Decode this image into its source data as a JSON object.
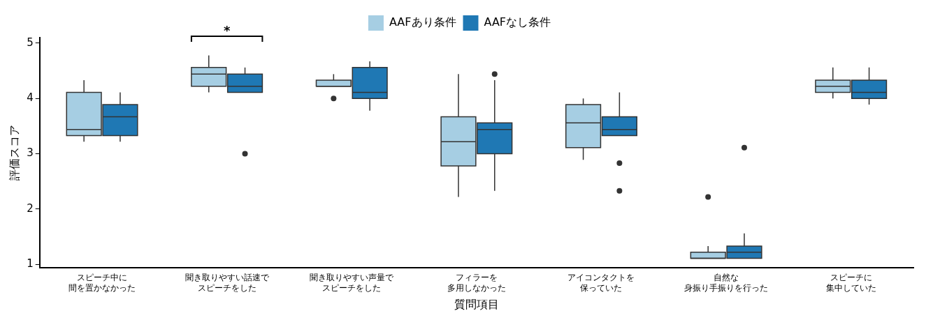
{
  "chart_data": {
    "type": "box",
    "xlabel": "質問項目",
    "ylabel": "評価スコア",
    "categories": [
      "スピーチ中に間を置かなかった",
      "聞き取りやすい話速でスピーチをした",
      "聞き取りやすい声量でスピーチをした",
      "フィラーを多用しなかった",
      "アイコンタクトを保っていた",
      "自然な身振り手振りを行った",
      "スピーチに集中していた"
    ],
    "ylim": [
      0.94,
      5.1
    ],
    "yticks": [
      1,
      2,
      3,
      4,
      5
    ],
    "legend": "top",
    "annotations": [
      "*"
    ],
    "series": [
      {
        "name": "AAFあり条件",
        "color": "#a6cee3",
        "boxes": [
          {
            "low": 3.22,
            "q1": 3.33,
            "median": 3.44,
            "q3": 4.11,
            "high": 4.33
          },
          {
            "low": 4.11,
            "q1": 4.22,
            "median": 4.44,
            "q3": 4.56,
            "high": 4.78
          },
          {
            "low": 4.22,
            "q1": 4.22,
            "median": 4.22,
            "q3": 4.33,
            "high": 4.44,
            "outliers": [
              4.0
            ]
          },
          {
            "low": 2.22,
            "q1": 2.78,
            "median": 3.22,
            "q3": 3.67,
            "high": 4.44
          },
          {
            "low": 2.89,
            "q1": 3.11,
            "median": 3.56,
            "q3": 3.89,
            "high": 4.0
          },
          {
            "low": 1.11,
            "q1": 1.11,
            "median": 1.11,
            "q3": 1.22,
            "high": 1.33,
            "outliers": [
              2.22
            ]
          },
          {
            "low": 4.0,
            "q1": 4.11,
            "median": 4.22,
            "q3": 4.33,
            "high": 4.56
          }
        ]
      },
      {
        "name": "AAFなし条件",
        "color": "#1f78b4",
        "boxes": [
          {
            "low": 3.22,
            "q1": 3.33,
            "median": 3.67,
            "q3": 3.89,
            "high": 4.11
          },
          {
            "low": 4.11,
            "q1": 4.11,
            "median": 4.22,
            "q3": 4.44,
            "high": 4.56,
            "outliers": [
              3.0
            ]
          },
          {
            "low": 3.78,
            "q1": 4.0,
            "median": 4.11,
            "q3": 4.56,
            "high": 4.67
          },
          {
            "low": 2.33,
            "q1": 3.0,
            "median": 3.44,
            "q3": 3.56,
            "high": 4.33,
            "outliers": [
              4.44
            ]
          },
          {
            "low": 3.33,
            "q1": 3.33,
            "median": 3.44,
            "q3": 3.67,
            "high": 4.11,
            "outliers": [
              2.83,
              2.33
            ]
          },
          {
            "low": 1.11,
            "q1": 1.11,
            "median": 1.22,
            "q3": 1.33,
            "high": 1.56,
            "outliers": [
              3.11
            ]
          },
          {
            "low": 3.89,
            "q1": 4.0,
            "median": 4.11,
            "q3": 4.33,
            "high": 4.56
          }
        ]
      }
    ]
  }
}
